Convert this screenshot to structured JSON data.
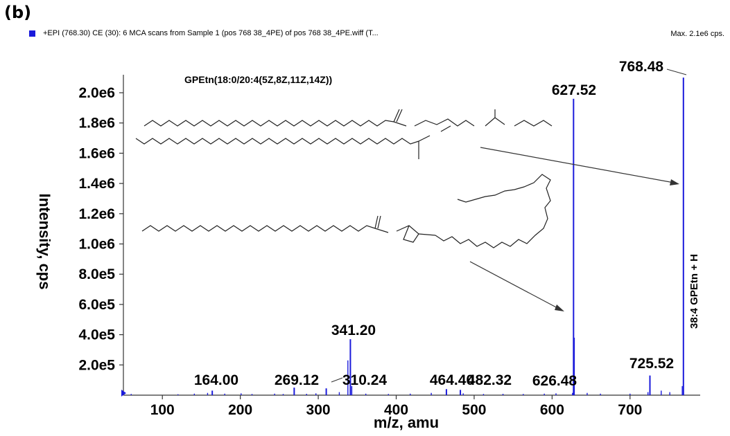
{
  "panel_label": "(b)",
  "header": {
    "scan_info": "+EPI (768.30) CE (30): 6 MCA scans from Sample 1 (pos 768 38_4PE) of pos 768 38_4PE.wiff (T...",
    "max_info": "Max. 2.1e6 cps."
  },
  "chart_data": {
    "type": "bar",
    "title": "GPEtn(18:0/20:4(5Z,8Z,11Z,14Z))",
    "xlabel": "m/z, amu",
    "ylabel": "Intensity, cps",
    "xlim": [
      50,
      790
    ],
    "ylim": [
      0,
      2100000
    ],
    "x_ticks": [
      "100",
      "200",
      "300",
      "400",
      "500",
      "600",
      "700"
    ],
    "y_ticks": [
      "2.0e5",
      "4.0e5",
      "6.0e5",
      "8.0e5",
      "1.0e6",
      "1.2e6",
      "1.4e6",
      "1.6e6",
      "1.8e6",
      "2.0e6"
    ],
    "series_color": "#1a1adb",
    "peaks": [
      {
        "x": 164.0,
        "y": 30000,
        "label": "164.00"
      },
      {
        "x": 269.12,
        "y": 50000,
        "label": "269.12"
      },
      {
        "x": 310.24,
        "y": 45000,
        "label": "310.24"
      },
      {
        "x": 341.2,
        "y": 370000,
        "label": "341.20"
      },
      {
        "x": 464.4,
        "y": 40000,
        "label": "464.40"
      },
      {
        "x": 482.32,
        "y": 35000,
        "label": "482.32"
      },
      {
        "x": 626.48,
        "y": 15000,
        "label": "626.48"
      },
      {
        "x": 627.52,
        "y": 1960000,
        "label": "627.52"
      },
      {
        "x": 725.52,
        "y": 130000,
        "label": "725.52"
      },
      {
        "x": 768.48,
        "y": 2100000,
        "label": "768.48"
      }
    ],
    "minor_peaks": [
      {
        "x": 60,
        "y": 8000
      },
      {
        "x": 120,
        "y": 6000
      },
      {
        "x": 141,
        "y": 10000
      },
      {
        "x": 158,
        "y": 15000
      },
      {
        "x": 180,
        "y": 10000
      },
      {
        "x": 201,
        "y": 12000
      },
      {
        "x": 215,
        "y": 8000
      },
      {
        "x": 244,
        "y": 10000
      },
      {
        "x": 255,
        "y": 8000
      },
      {
        "x": 285,
        "y": 9000
      },
      {
        "x": 297,
        "y": 12000
      },
      {
        "x": 327,
        "y": 20000
      },
      {
        "x": 338,
        "y": 230000
      },
      {
        "x": 343,
        "y": 60000
      },
      {
        "x": 361,
        "y": 10000
      },
      {
        "x": 390,
        "y": 8000
      },
      {
        "x": 418,
        "y": 10000
      },
      {
        "x": 445,
        "y": 15000
      },
      {
        "x": 486,
        "y": 12000
      },
      {
        "x": 512,
        "y": 8000
      },
      {
        "x": 537,
        "y": 9000
      },
      {
        "x": 563,
        "y": 8000
      },
      {
        "x": 590,
        "y": 10000
      },
      {
        "x": 605,
        "y": 12000
      },
      {
        "x": 628.5,
        "y": 380000
      },
      {
        "x": 645,
        "y": 15000
      },
      {
        "x": 662,
        "y": 10000
      },
      {
        "x": 700,
        "y": 10000
      },
      {
        "x": 723,
        "y": 20000
      },
      {
        "x": 740,
        "y": 30000
      },
      {
        "x": 751,
        "y": 20000
      },
      {
        "x": 767,
        "y": 60000
      }
    ],
    "annotations": [
      "38:4 GPEtn + H"
    ]
  }
}
